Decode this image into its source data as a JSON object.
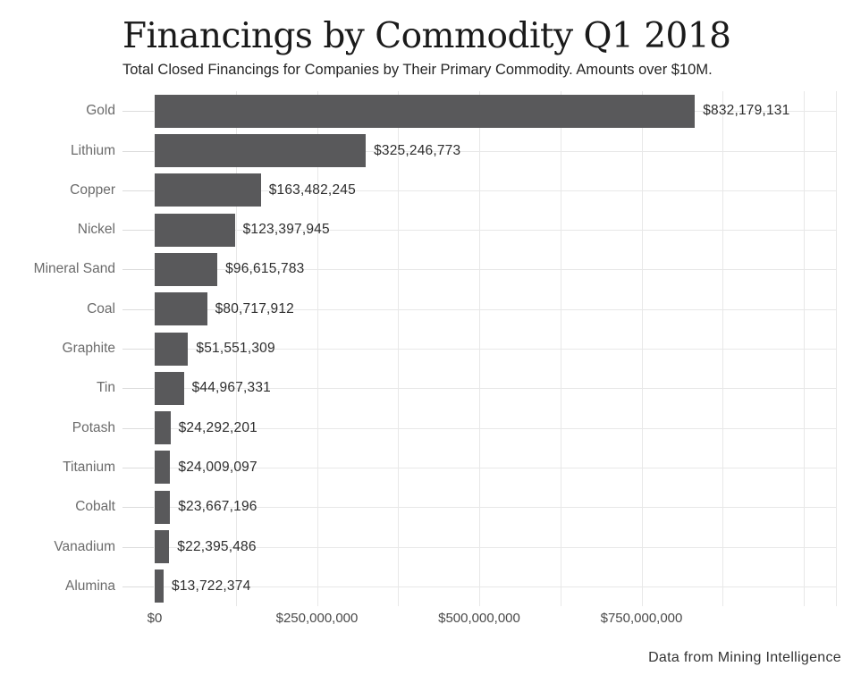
{
  "chart_data": {
    "type": "bar",
    "orientation": "horizontal",
    "title": "Financings by Commodity Q1 2018",
    "subtitle": "Total Closed Financings for Companies by Their Primary Commodity. Amounts over $10M.",
    "source": "Data from Mining Intelligence",
    "categories": [
      "Gold",
      "Lithium",
      "Copper",
      "Nickel",
      "Mineral Sand",
      "Coal",
      "Graphite",
      "Tin",
      "Potash",
      "Titanium",
      "Cobalt",
      "Vanadium",
      "Alumina"
    ],
    "values": [
      832179131,
      325246773,
      163482245,
      123397945,
      96615783,
      80717912,
      51551309,
      44967331,
      24292201,
      24009097,
      23667196,
      22395486,
      13722374
    ],
    "value_labels": [
      "$832,179,131",
      "$325,246,773",
      "$163,482,245",
      "$123,397,945",
      "$96,615,783",
      "$80,717,912",
      "$51,551,309",
      "$44,967,331",
      "$24,292,201",
      "$24,009,097",
      "$23,667,196",
      "$22,395,486",
      "$13,722,374"
    ],
    "x_axis": {
      "ticks": [
        {
          "value": 0,
          "label": "$0"
        },
        {
          "value": 250000000,
          "label": "$250,000,000"
        },
        {
          "value": 500000000,
          "label": "$500,000,000"
        },
        {
          "value": 750000000,
          "label": "$750,000,000"
        }
      ],
      "minor_gridline_step": 125000000,
      "max_gridline_value": 1000000000,
      "axis_max": 1048000000
    },
    "grid": {
      "horizontal_at_category_centers": true,
      "vertical_minor": true
    },
    "legend": false,
    "colors": {
      "bar": "#59595B",
      "category_label": "#6B6B6B",
      "value_label": "#2D2D2D",
      "axis_label": "#4A4A4A",
      "gridline": "#E8E8E8",
      "category_tick": "#DCDCDC",
      "title": "#1A1A1A",
      "subtitle": "#262626",
      "source": "#333333",
      "background": "#FFFFFF"
    }
  }
}
